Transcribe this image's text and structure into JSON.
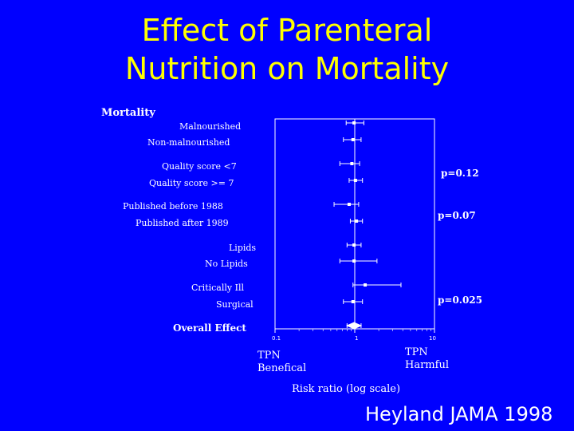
{
  "slide": {
    "title_line1": "Effect of Parenteral",
    "title_line2": "Nutrition on Mortality",
    "citation": "Heyland JAMA 1998"
  },
  "chart_data": {
    "type": "forest",
    "title": "Mortality",
    "xlabel": "Risk ratio (log scale)",
    "x_scale": "log",
    "xlim": [
      0.1,
      10
    ],
    "x_ticks": [
      "0.1",
      "1",
      "10"
    ],
    "reference_line": 1,
    "annotations": {
      "left_line1": "TPN",
      "left_line2": "Benefical",
      "right_line1": "TPN",
      "right_line2": "Harmful"
    },
    "rows": [
      {
        "label": "Malnourished",
        "rr": 0.98,
        "ci": [
          0.78,
          1.3
        ],
        "bold": false
      },
      {
        "label": "Non-malnourished",
        "rr": 0.95,
        "ci": [
          0.72,
          1.2
        ],
        "bold": false
      },
      {
        "label": "Quality score <7",
        "rr": 0.92,
        "ci": [
          0.65,
          1.15
        ],
        "bold": false
      },
      {
        "label": "Quality score >= 7",
        "rr": 1.02,
        "ci": [
          0.85,
          1.25
        ],
        "bold": false
      },
      {
        "label": "Published before 1988",
        "rr": 0.85,
        "ci": [
          0.55,
          1.12
        ],
        "bold": false
      },
      {
        "label": "Published after 1989",
        "rr": 1.05,
        "ci": [
          0.88,
          1.25
        ],
        "bold": false
      },
      {
        "label": "Lipids",
        "rr": 0.98,
        "ci": [
          0.8,
          1.2
        ],
        "bold": false
      },
      {
        "label": "No Lipids",
        "rr": 0.98,
        "ci": [
          0.65,
          1.9
        ],
        "bold": false
      },
      {
        "label": "Critically Ill",
        "rr": 1.35,
        "ci": [
          0.95,
          3.8
        ],
        "bold": false
      },
      {
        "label": "Surgical",
        "rr": 0.95,
        "ci": [
          0.72,
          1.25
        ],
        "bold": false
      },
      {
        "label": "Overall Effect",
        "rr": 0.98,
        "ci": [
          0.8,
          1.2
        ],
        "bold": true
      }
    ],
    "p_values": [
      {
        "text": "p=0.12"
      },
      {
        "text": "p=0.07"
      },
      {
        "text": "p=0.025"
      }
    ]
  }
}
